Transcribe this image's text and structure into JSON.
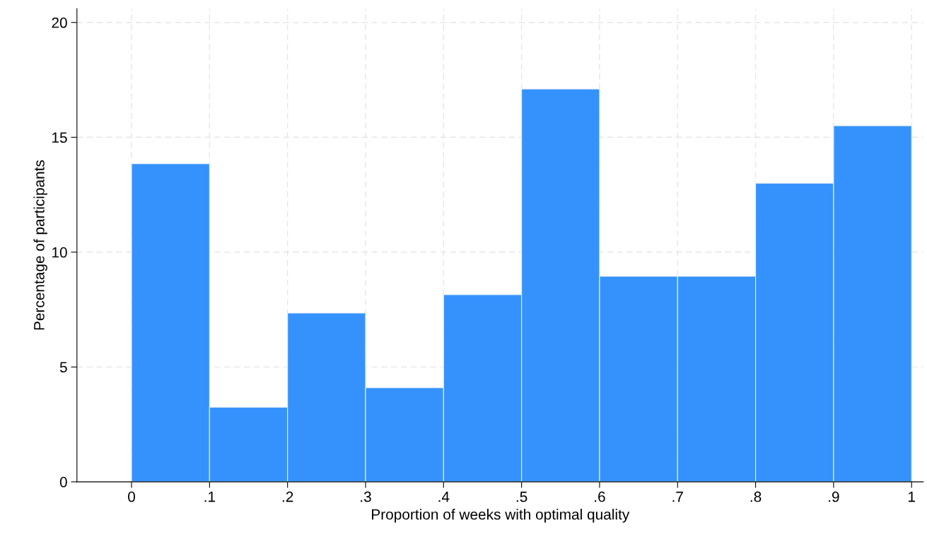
{
  "chart_data": {
    "type": "histogram",
    "xlabel": "Proportion of weeks with optimal quality",
    "ylabel": "Percentage of participants",
    "bins": [
      0,
      0.1,
      0.2,
      0.3,
      0.4,
      0.5,
      0.6,
      0.7,
      0.8,
      0.9,
      1
    ],
    "values": [
      13.85,
      3.25,
      7.35,
      4.1,
      8.15,
      17.1,
      8.95,
      8.95,
      13.0,
      15.5
    ],
    "color": "#3592fd",
    "xlim": [
      -0.07,
      1.015
    ],
    "ylim": [
      0,
      20.6
    ],
    "xticks": [
      0,
      {
        "value": 0.1,
        "label": ".1"
      },
      {
        "value": 0.2,
        "label": ".2"
      },
      {
        "value": 0.3,
        "label": ".3"
      },
      {
        "value": 0.4,
        "label": ".4"
      },
      {
        "value": 0.5,
        "label": ".5"
      },
      {
        "value": 0.6,
        "label": ".6"
      },
      {
        "value": 0.7,
        "label": ".7"
      },
      {
        "value": 0.8,
        "label": ".8"
      },
      {
        "value": 0.9,
        "label": ".9"
      },
      1
    ],
    "yticks": [
      0,
      5,
      10,
      15,
      20
    ],
    "grid": true
  }
}
